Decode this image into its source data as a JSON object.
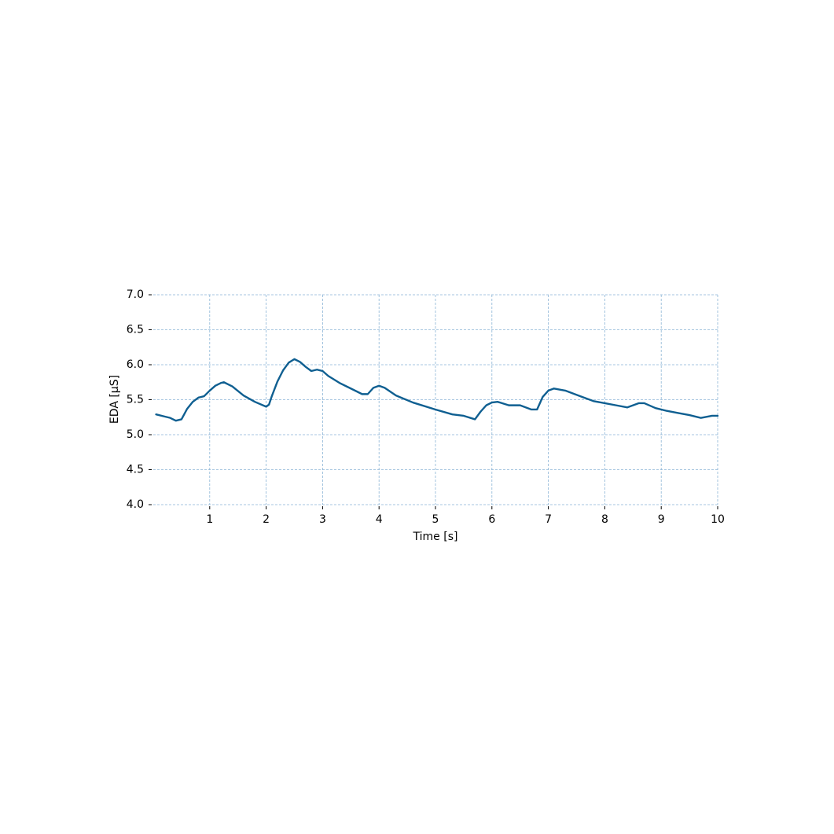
{
  "chart_data": {
    "type": "line",
    "xlabel": "Time [s]",
    "ylabel": "EDA [μS]",
    "x": [
      0.05,
      0.2,
      0.3,
      0.4,
      0.5,
      0.6,
      0.7,
      0.8,
      0.9,
      1.0,
      1.1,
      1.2,
      1.25,
      1.4,
      1.6,
      1.8,
      2.0,
      2.05,
      2.1,
      2.2,
      2.3,
      2.4,
      2.5,
      2.6,
      2.7,
      2.8,
      2.9,
      3.0,
      3.1,
      3.3,
      3.5,
      3.7,
      3.8,
      3.9,
      4.0,
      4.1,
      4.3,
      4.6,
      5.0,
      5.3,
      5.5,
      5.7,
      5.8,
      5.9,
      6.0,
      6.1,
      6.3,
      6.5,
      6.7,
      6.8,
      6.9,
      7.0,
      7.1,
      7.3,
      7.6,
      7.8,
      8.0,
      8.2,
      8.4,
      8.6,
      8.7,
      8.9,
      9.1,
      9.3,
      9.5,
      9.7,
      9.9,
      10.0
    ],
    "series": [
      {
        "color": "#0f5f91",
        "values": [
          5.29,
          5.26,
          5.24,
          5.2,
          5.22,
          5.37,
          5.47,
          5.53,
          5.55,
          5.63,
          5.7,
          5.74,
          5.75,
          5.69,
          5.56,
          5.47,
          5.4,
          5.43,
          5.55,
          5.76,
          5.92,
          6.03,
          6.08,
          6.04,
          5.97,
          5.91,
          5.93,
          5.91,
          5.84,
          5.74,
          5.66,
          5.58,
          5.58,
          5.67,
          5.7,
          5.67,
          5.56,
          5.46,
          5.36,
          5.29,
          5.27,
          5.22,
          5.33,
          5.42,
          5.46,
          5.47,
          5.42,
          5.42,
          5.36,
          5.36,
          5.54,
          5.63,
          5.66,
          5.63,
          5.54,
          5.48,
          5.45,
          5.42,
          5.39,
          5.45,
          5.45,
          5.38,
          5.34,
          5.31,
          5.28,
          5.24,
          5.27,
          5.27
        ]
      }
    ],
    "xlim": [
      0,
      10
    ],
    "xticks": [
      1,
      2,
      3,
      4,
      5,
      6,
      7,
      8,
      9,
      10
    ],
    "ylim": [
      4.0,
      7.0
    ],
    "yticks": [
      {
        "value": 4.0,
        "label": "4.0"
      },
      {
        "value": 4.5,
        "label": "4.5"
      },
      {
        "value": 5.0,
        "label": "5.0"
      },
      {
        "value": 5.5,
        "label": "5.5"
      },
      {
        "value": 6.0,
        "label": "6.0"
      },
      {
        "value": 6.5,
        "label": "6.5"
      },
      {
        "value": 7.0,
        "label": "7.0"
      }
    ],
    "grid": true,
    "grid_color": "#8ab4d6"
  }
}
